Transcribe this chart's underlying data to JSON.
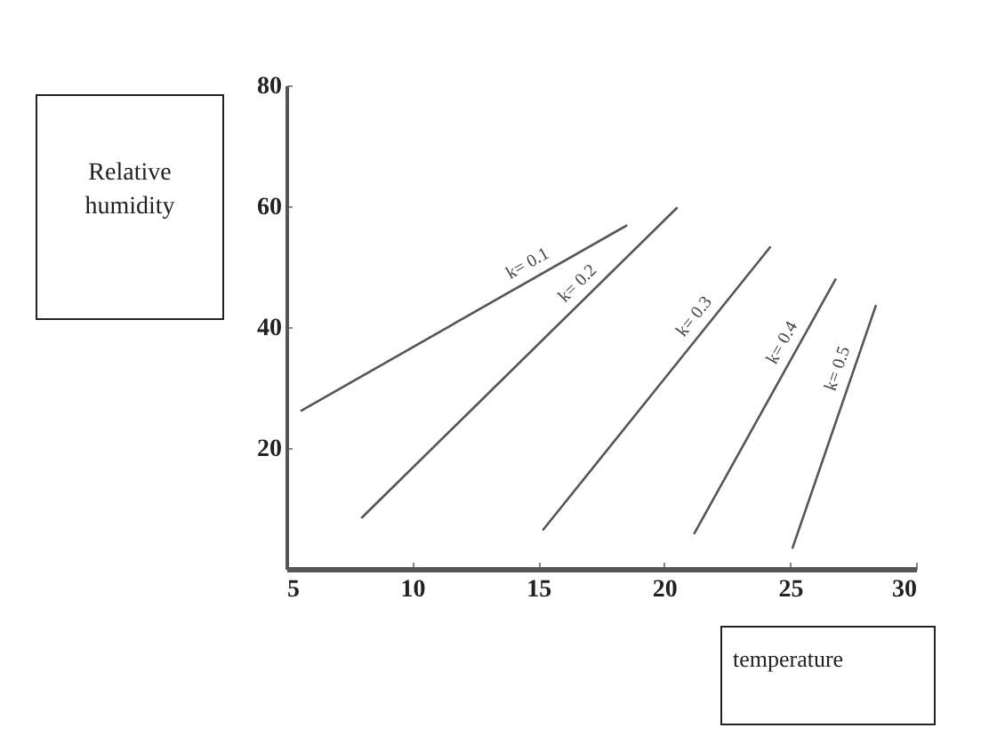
{
  "chart_data": {
    "type": "line",
    "xlabel": "temperature",
    "ylabel": "Relative humidity",
    "xlim": [
      5,
      30
    ],
    "xticks": [
      5,
      10,
      15,
      20,
      25,
      30
    ],
    "ylim": [
      0,
      80
    ],
    "yticks": [
      20,
      40,
      60,
      80
    ],
    "grid": false,
    "series": [
      {
        "name": "k= 0.1",
        "color": "#555555",
        "x": [
          5.6,
          18.5
        ],
        "values": [
          26.2,
          56.8
        ]
      },
      {
        "name": "k= 0.2",
        "color": "#555555",
        "x": [
          8.0,
          20.5
        ],
        "values": [
          8.5,
          59.7
        ]
      },
      {
        "name": "k= 0.3",
        "color": "#555555",
        "x": [
          15.2,
          24.2
        ],
        "values": [
          6.5,
          53.2
        ]
      },
      {
        "name": "k= 0.4",
        "color": "#555555",
        "x": [
          21.2,
          26.8
        ],
        "values": [
          5.9,
          47.9
        ]
      },
      {
        "name": "k= 0.5",
        "color": "#555555",
        "x": [
          25.1,
          28.4
        ],
        "values": [
          3.5,
          43.5
        ]
      }
    ]
  }
}
